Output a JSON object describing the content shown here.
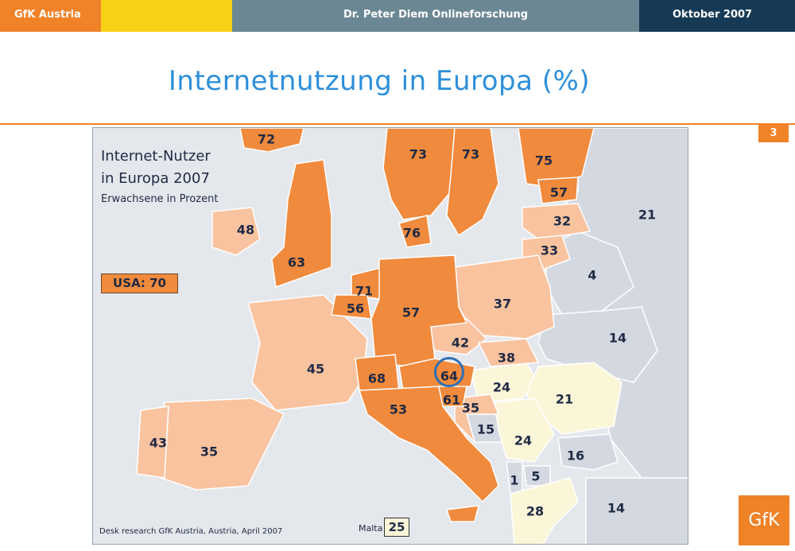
{
  "header": {
    "left": "GfK Austria",
    "center": "Dr. Peter Diem  Onlineforschung",
    "right": "Oktober 2007"
  },
  "title": "Internetnutzung in Europa (%)",
  "page_number": "3",
  "map": {
    "title_line1": "Internet-Nutzer",
    "title_line2": "in Europa 2007",
    "subtitle": "Erwachsene in Prozent",
    "usa_label": "USA: 70",
    "source": "Desk research GfK Austria, Austria, April 2007",
    "malta_label": "Malta",
    "malta_value": "25",
    "values": [
      {
        "id": "iceland",
        "text": "72"
      },
      {
        "id": "norway",
        "text": "73"
      },
      {
        "id": "sweden",
        "text": "73"
      },
      {
        "id": "finland",
        "text": "75"
      },
      {
        "id": "estonia",
        "text": "57"
      },
      {
        "id": "latvia",
        "text": "32"
      },
      {
        "id": "lithuania",
        "text": "33"
      },
      {
        "id": "russia",
        "text": "21"
      },
      {
        "id": "belarus",
        "text": "4"
      },
      {
        "id": "ukraine",
        "text": "14"
      },
      {
        "id": "ireland",
        "text": "48"
      },
      {
        "id": "uk",
        "text": "63"
      },
      {
        "id": "denmark",
        "text": "76"
      },
      {
        "id": "netherlands",
        "text": "71"
      },
      {
        "id": "belgium",
        "text": "56"
      },
      {
        "id": "germany",
        "text": "57"
      },
      {
        "id": "poland",
        "text": "37"
      },
      {
        "id": "france",
        "text": "45"
      },
      {
        "id": "czech",
        "text": "42"
      },
      {
        "id": "slovakia",
        "text": "38"
      },
      {
        "id": "switzerland",
        "text": "68"
      },
      {
        "id": "austria",
        "text": "64"
      },
      {
        "id": "hungary",
        "text": "24"
      },
      {
        "id": "romania",
        "text": "21"
      },
      {
        "id": "slovenia",
        "text": "61"
      },
      {
        "id": "italy",
        "text": "53"
      },
      {
        "id": "croatia",
        "text": "35"
      },
      {
        "id": "bosnia",
        "text": "15"
      },
      {
        "id": "serbia",
        "text": "24"
      },
      {
        "id": "bulgaria",
        "text": "16"
      },
      {
        "id": "albania",
        "text": "1"
      },
      {
        "id": "macedonia",
        "text": "5"
      },
      {
        "id": "greece",
        "text": "28"
      },
      {
        "id": "turkey",
        "text": "14"
      },
      {
        "id": "portugal",
        "text": "43"
      },
      {
        "id": "spain",
        "text": "35"
      }
    ]
  },
  "logo": "GfK",
  "colors": {
    "orange_dark": "#f08a3c",
    "orange_light": "#f9c3a0",
    "yellow": "#fbf6d8",
    "gray": "#d4d9e1",
    "accent_blue": "#2d8fd9"
  }
}
